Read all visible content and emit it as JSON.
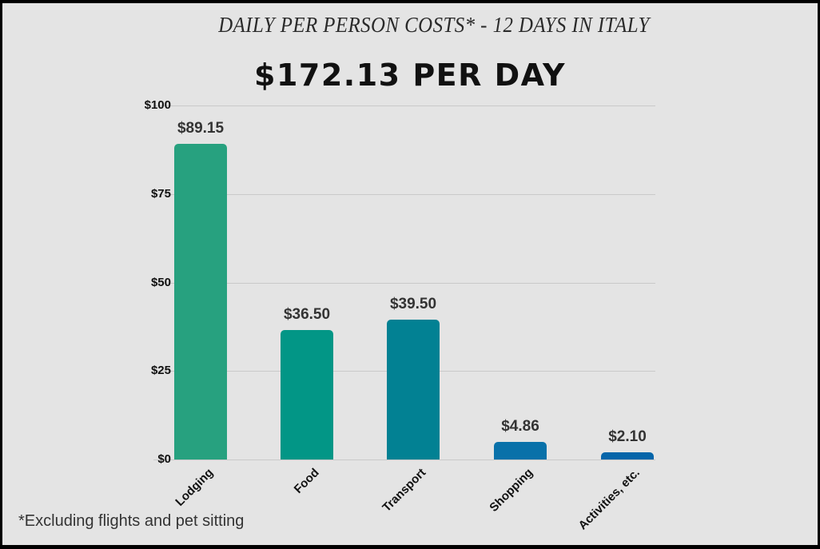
{
  "header": {
    "subtitle": "DAILY PER PERSON COSTS* - 12 DAYS IN ITALY",
    "headline": "$172.13 PER DAY"
  },
  "footnote": "*Excluding flights and pet sitting",
  "axis": {
    "yticks": [
      "$100",
      "$75",
      "$50",
      "$25",
      "$0"
    ]
  },
  "bars": [
    {
      "label": "Lodging",
      "value_label": "$89.15",
      "color": "#27a17f"
    },
    {
      "label": "Food",
      "value_label": "$36.50",
      "color": "#029686"
    },
    {
      "label": "Transport",
      "value_label": "$39.50",
      "color": "#028193"
    },
    {
      "label": "Shopping",
      "value_label": "$4.86",
      "color": "#0971a9"
    },
    {
      "label": "Activities, etc.",
      "value_label": "$2.10",
      "color": "#0565a9"
    }
  ],
  "chart_data": {
    "type": "bar",
    "title": "DAILY PER PERSON COSTS* - 12 DAYS IN ITALY",
    "subtitle": "$172.13 PER DAY",
    "categories": [
      "Lodging",
      "Food",
      "Transport",
      "Shopping",
      "Activities, etc."
    ],
    "values": [
      89.15,
      36.5,
      39.5,
      4.86,
      2.1
    ],
    "value_labels": [
      "$89.15",
      "$36.50",
      "$39.50",
      "$4.86",
      "$2.10"
    ],
    "xlabel": "",
    "ylabel": "",
    "ylim": [
      0,
      100
    ],
    "yticks": [
      0,
      25,
      50,
      75,
      100
    ],
    "ytick_labels": [
      "$0",
      "$25",
      "$50",
      "$75",
      "$100"
    ],
    "grid": true,
    "legend": null,
    "annotations": [
      "*Excluding flights and pet sitting"
    ],
    "colors": [
      "#27a17f",
      "#029686",
      "#028193",
      "#0971a9",
      "#0565a9"
    ]
  }
}
